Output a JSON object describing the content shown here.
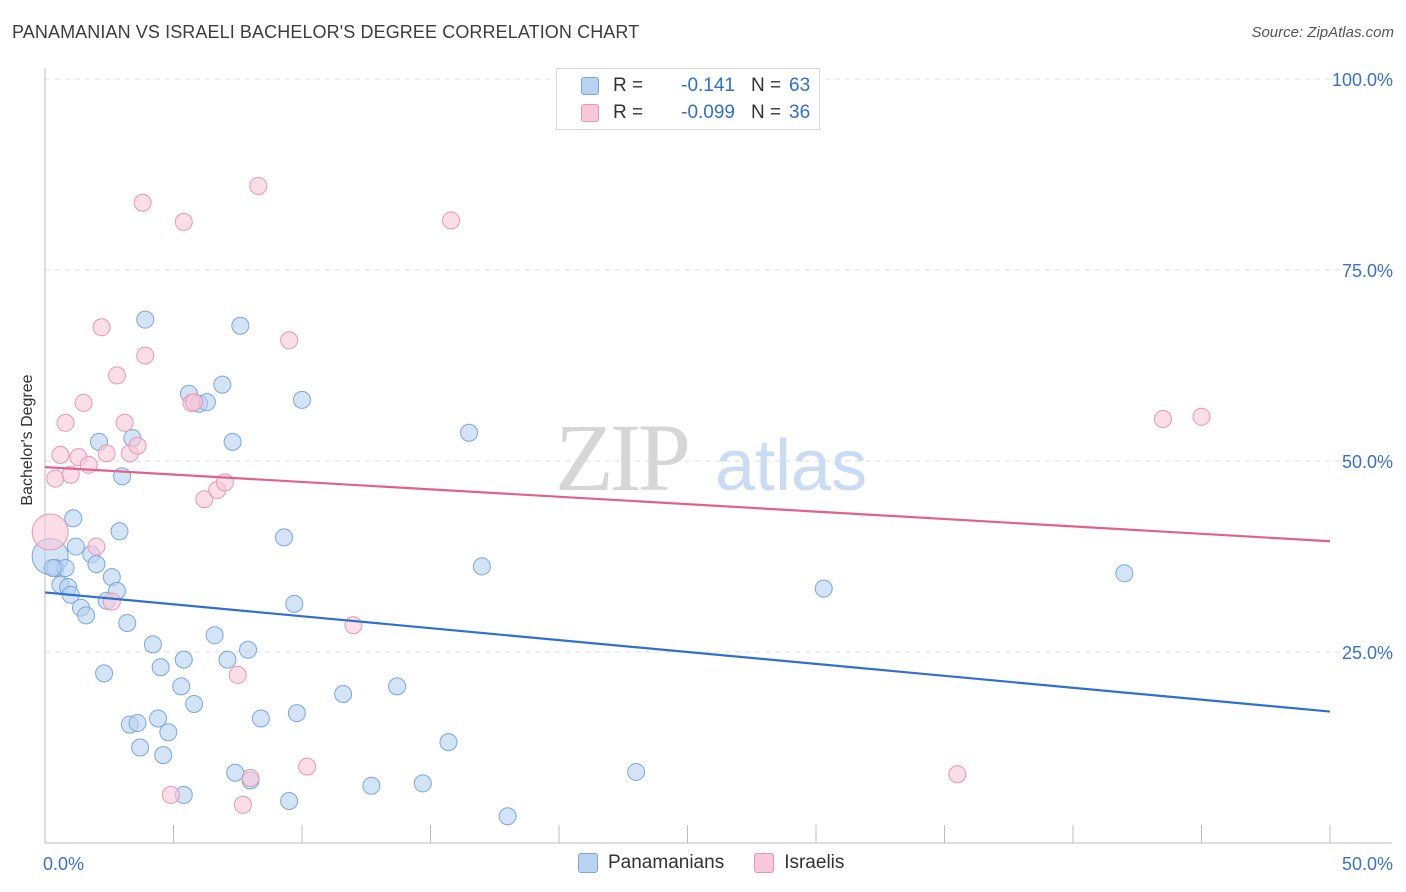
{
  "title": "PANAMANIAN VS ISRAELI BACHELOR'S DEGREE CORRELATION CHART",
  "source": "Source: ZipAtlas.com",
  "watermark": {
    "zip": "ZIP",
    "atlas": "atlas"
  },
  "legend_top": [
    {
      "r_label": "R =",
      "r_value": "-0.141",
      "n_label": "N =",
      "n_value": "63"
    },
    {
      "r_label": "R =",
      "r_value": "-0.099",
      "n_label": "N =",
      "n_value": "36"
    }
  ],
  "legend_bottom": [
    "Panamanians",
    "Israelis"
  ],
  "colors": {
    "blue_fill": "#b8d2f2",
    "blue_stroke": "#7aa6e0",
    "blue_line": "#2f6fcf",
    "pink_fill": "#f8c8d8",
    "pink_stroke": "#e896b4",
    "pink_line": "#e0628a",
    "axis_text": "#3a72c8",
    "grid": "#dedede"
  },
  "chart_data": {
    "type": "scatter",
    "title": "PANAMANIAN VS ISRAELI BACHELOR'S DEGREE CORRELATION CHART",
    "xlabel": "",
    "ylabel": "Bachelor's Degree",
    "xlim": [
      0,
      50
    ],
    "ylim": [
      0,
      100
    ],
    "x_tick_labels": [
      "0.0%",
      "50.0%"
    ],
    "y_ticks": [
      25,
      50,
      75,
      100
    ],
    "y_tick_labels": [
      "25.0%",
      "50.0%",
      "75.0%",
      "100.0%"
    ],
    "series": [
      {
        "name": "Panamanians",
        "color": "#7aa6e0",
        "trend": {
          "x": [
            0,
            50
          ],
          "y": [
            32.8,
            17.2
          ]
        },
        "points": [
          [
            0.2,
            37.5
          ],
          [
            0.4,
            36
          ],
          [
            0.6,
            33.8
          ],
          [
            0.8,
            36
          ],
          [
            0.9,
            33.5
          ],
          [
            1.0,
            32.5
          ],
          [
            1.1,
            42.5
          ],
          [
            1.2,
            38.8
          ],
          [
            1.4,
            30.8
          ],
          [
            1.6,
            29.8
          ],
          [
            1.8,
            37.8
          ],
          [
            2.0,
            36.5
          ],
          [
            2.1,
            52.5
          ],
          [
            2.3,
            22.2
          ],
          [
            2.4,
            31.7
          ],
          [
            2.6,
            34.8
          ],
          [
            2.8,
            33
          ],
          [
            2.9,
            40.8
          ],
          [
            3.0,
            48
          ],
          [
            3.2,
            28.8
          ],
          [
            3.3,
            15.5
          ],
          [
            3.4,
            53
          ],
          [
            3.6,
            15.7
          ],
          [
            3.7,
            12.5
          ],
          [
            3.9,
            68.5
          ],
          [
            4.2,
            26
          ],
          [
            4.4,
            16.3
          ],
          [
            4.5,
            23
          ],
          [
            4.6,
            11.5
          ],
          [
            4.8,
            14.5
          ],
          [
            5.3,
            20.5
          ],
          [
            5.4,
            24
          ],
          [
            5.4,
            6.3
          ],
          [
            5.6,
            58.8
          ],
          [
            5.8,
            18.2
          ],
          [
            6.0,
            57.5
          ],
          [
            6.3,
            57.7
          ],
          [
            6.6,
            27.2
          ],
          [
            6.9,
            60
          ],
          [
            7.1,
            24
          ],
          [
            7.3,
            52.5
          ],
          [
            7.4,
            9.2
          ],
          [
            7.6,
            67.7
          ],
          [
            7.9,
            25.3
          ],
          [
            8.0,
            8.2
          ],
          [
            8.4,
            16.3
          ],
          [
            9.3,
            40
          ],
          [
            9.5,
            5.5
          ],
          [
            9.7,
            31.3
          ],
          [
            9.8,
            17
          ],
          [
            10.0,
            58
          ],
          [
            11.6,
            19.5
          ],
          [
            12.7,
            7.5
          ],
          [
            13.7,
            20.5
          ],
          [
            14.7,
            7.8
          ],
          [
            15.7,
            13.2
          ],
          [
            16.5,
            53.7
          ],
          [
            17.0,
            36.2
          ],
          [
            18.0,
            3.5
          ],
          [
            23.0,
            9.3
          ],
          [
            30.3,
            33.3
          ],
          [
            42.0,
            35.3
          ],
          [
            0.3,
            36
          ]
        ]
      },
      {
        "name": "Israelis",
        "color": "#e896b4",
        "trend": {
          "x": [
            0,
            50
          ],
          "y": [
            49.2,
            39.5
          ]
        },
        "points": [
          [
            0.2,
            40.7
          ],
          [
            0.4,
            47.7
          ],
          [
            0.6,
            50.8
          ],
          [
            0.8,
            55
          ],
          [
            1.0,
            48.2
          ],
          [
            1.3,
            50.5
          ],
          [
            1.5,
            57.6
          ],
          [
            1.7,
            49.5
          ],
          [
            2.0,
            38.8
          ],
          [
            2.2,
            67.5
          ],
          [
            2.4,
            51
          ],
          [
            2.6,
            31.6
          ],
          [
            2.8,
            61.2
          ],
          [
            3.1,
            55
          ],
          [
            3.3,
            51
          ],
          [
            3.6,
            52
          ],
          [
            3.8,
            83.8
          ],
          [
            3.9,
            63.8
          ],
          [
            4.9,
            6.3
          ],
          [
            5.4,
            81.3
          ],
          [
            5.7,
            57.6
          ],
          [
            5.8,
            57.7
          ],
          [
            6.2,
            45
          ],
          [
            6.7,
            46.2
          ],
          [
            7.0,
            47.2
          ],
          [
            7.5,
            22
          ],
          [
            7.7,
            5
          ],
          [
            8.0,
            8.5
          ],
          [
            8.3,
            86
          ],
          [
            9.5,
            65.8
          ],
          [
            10.2,
            10
          ],
          [
            12.0,
            28.5
          ],
          [
            15.8,
            81.5
          ],
          [
            35.5,
            9
          ],
          [
            43.5,
            55.5
          ],
          [
            45.0,
            55.8
          ]
        ]
      }
    ]
  }
}
